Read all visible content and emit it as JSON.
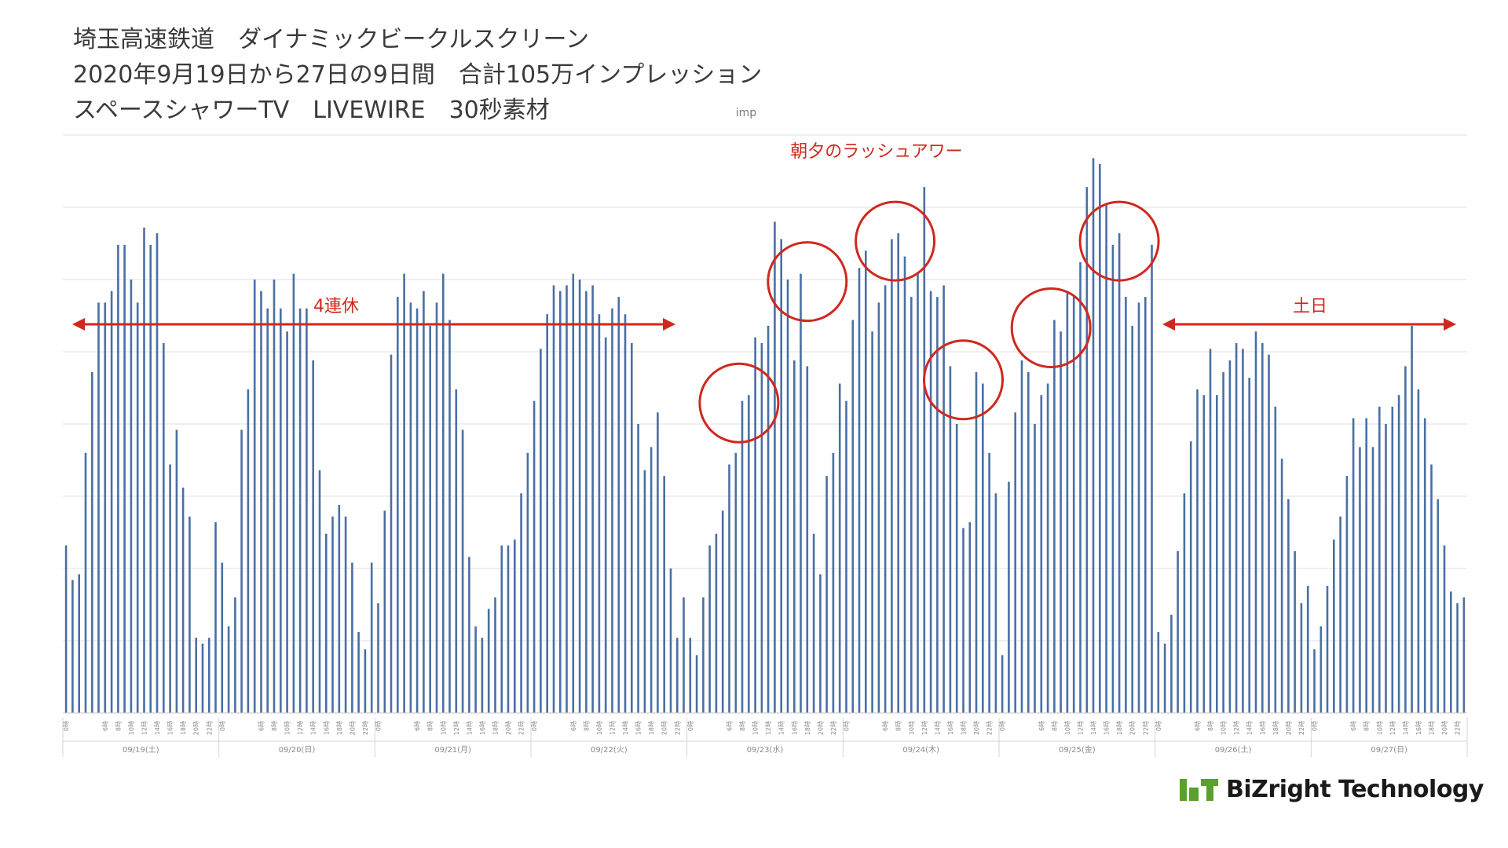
{
  "title_lines": [
    "埼玉高速鉄道　ダイナミックビークルスクリーン",
    "2020年9月19日から27日の9日間　合計105万インプレッション",
    "スペースシャワーTV　LIVEWIRE　30秒素材"
  ],
  "logo": {
    "text": "BiZright Technology",
    "color": "#5aa02c"
  },
  "chart_data": {
    "type": "bar",
    "unit_label": "imp",
    "grid": true,
    "bar_color": "#4a6fa5",
    "annotation_color": "#d0281e",
    "days": [
      {
        "label": "09/19(土)",
        "values": [
          29,
          23,
          24,
          45,
          59,
          71,
          71,
          73,
          81,
          81,
          75,
          71,
          84,
          81,
          83,
          64,
          43,
          49,
          39,
          34,
          13,
          12,
          13,
          33
        ]
      },
      {
        "label": "09/20(日)",
        "values": [
          26,
          15,
          20,
          49,
          56,
          75,
          73,
          70,
          75,
          70,
          66,
          76,
          70,
          70,
          61,
          42,
          31,
          34,
          36,
          34,
          26,
          14,
          11,
          26
        ]
      },
      {
        "label": "09/21(月)",
        "values": [
          19,
          35,
          62,
          72,
          76,
          71,
          70,
          73,
          67,
          71,
          76,
          68,
          56,
          49,
          27,
          15,
          13,
          18,
          20,
          29,
          29,
          30,
          38,
          45
        ]
      },
      {
        "label": "09/22(火)",
        "values": [
          54,
          63,
          69,
          74,
          73,
          74,
          76,
          75,
          73,
          74,
          69,
          65,
          70,
          72,
          69,
          64,
          50,
          42,
          46,
          52,
          41,
          25,
          13,
          20
        ]
      },
      {
        "label": "09/23(水)",
        "values": [
          13,
          10,
          20,
          29,
          31,
          35,
          43,
          45,
          54,
          55,
          65,
          64,
          67,
          85,
          82,
          75,
          61,
          76,
          60,
          31,
          24,
          41,
          45,
          57
        ]
      },
      {
        "label": "09/24(木)",
        "values": [
          54,
          68,
          77,
          80,
          66,
          71,
          74,
          82,
          83,
          79,
          72,
          76,
          91,
          73,
          72,
          74,
          60,
          50,
          32,
          33,
          59,
          57,
          45,
          38
        ]
      },
      {
        "label": "09/25(金)",
        "values": [
          10,
          40,
          52,
          61,
          59,
          50,
          55,
          57,
          68,
          66,
          73,
          72,
          78,
          91,
          96,
          95,
          88,
          81,
          83,
          72,
          67,
          71,
          72,
          81
        ]
      },
      {
        "label": "09/26(土)",
        "values": [
          14,
          12,
          17,
          28,
          38,
          47,
          56,
          55,
          63,
          55,
          59,
          61,
          64,
          63,
          58,
          66,
          64,
          62,
          53,
          44,
          37,
          28,
          19,
          22
        ]
      },
      {
        "label": "09/27(日)",
        "values": [
          11,
          15,
          22,
          30,
          34,
          41,
          51,
          46,
          51,
          46,
          53,
          50,
          53,
          55,
          60,
          67,
          56,
          51,
          43,
          37,
          29,
          21,
          19,
          20
        ]
      }
    ],
    "ticks": {
      "labels": [
        "0時",
        "6時",
        "8時",
        "10時",
        "12時",
        "14時",
        "16時",
        "18時",
        "20時",
        "22時"
      ],
      "hours": [
        0,
        6,
        8,
        10,
        12,
        14,
        16,
        18,
        20,
        22
      ]
    },
    "annotations": {
      "rush_label": "朝夕のラッシュアワー",
      "holiday_label": "4連休",
      "weekend_label": "土日"
    }
  }
}
